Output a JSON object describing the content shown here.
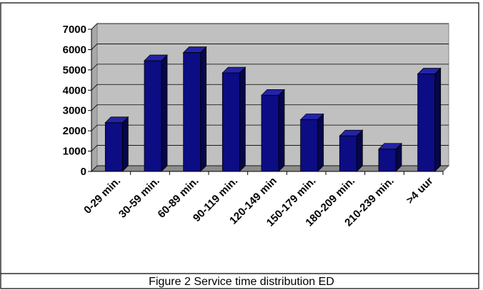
{
  "caption": "Figure 2  Service time distribution ED",
  "chart_data": {
    "type": "bar",
    "categories": [
      "0-29 min.",
      "30-59 min.",
      "60-89 min.",
      "90-119 min.",
      "120-149 min",
      "150-179 min.",
      "180-209 min.",
      "210-239 min.",
      ">4 uur"
    ],
    "values": [
      2400,
      5450,
      5850,
      4850,
      3750,
      2550,
      1750,
      1100,
      4800
    ],
    "yticks": [
      "0",
      "1000",
      "2000",
      "3000",
      "4000",
      "5000",
      "6000",
      "7000"
    ],
    "ylim": [
      0,
      7000
    ],
    "grid": true,
    "colors": {
      "bar_front": "#0c0c84",
      "bar_side": "#06064a",
      "bar_top": "#2323a8",
      "wall": "#c0c0c0",
      "floor": "#8c8c8c"
    }
  }
}
